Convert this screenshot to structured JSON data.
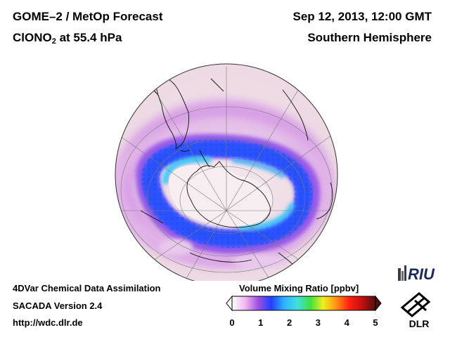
{
  "header": {
    "title_line1": "GOME–2 / MetOp Forecast",
    "species_main": "ClONO",
    "species_sub": "2",
    "species_rest": " at 55.4 hPa",
    "datetime": "Sep 12, 2013, 12:00 GMT",
    "region": "Southern Hemisphere"
  },
  "footer": {
    "method": "4DVar Chemical Data Assimilation",
    "version": "SACADA Version 2.4",
    "url": "http://wdc.dlr.de"
  },
  "colorbar": {
    "title": "Volume Mixing Ratio [ppbv]",
    "min": 0,
    "max": 5,
    "ticks": [
      "0",
      "1",
      "2",
      "3",
      "4",
      "5"
    ],
    "colors": [
      "#ffffff",
      "#f0b8f0",
      "#a050e0",
      "#2040ff",
      "#30b0ff",
      "#40e0e0",
      "#40e040",
      "#f0f020",
      "#ff9010",
      "#ff2010",
      "#c01010",
      "#501010"
    ]
  },
  "logos": {
    "riu": "RIU",
    "dlr": "DLR"
  },
  "map": {
    "projection": "orthographic",
    "hemisphere_pole": "South Pole",
    "field_colors": {
      "background": "#f2e2e8",
      "low": "#e4b8e4",
      "mid": "#b070e8",
      "high": "#2a5cff",
      "peak": "#3cc8f4",
      "antarctic_core": "#f8eef2"
    }
  }
}
